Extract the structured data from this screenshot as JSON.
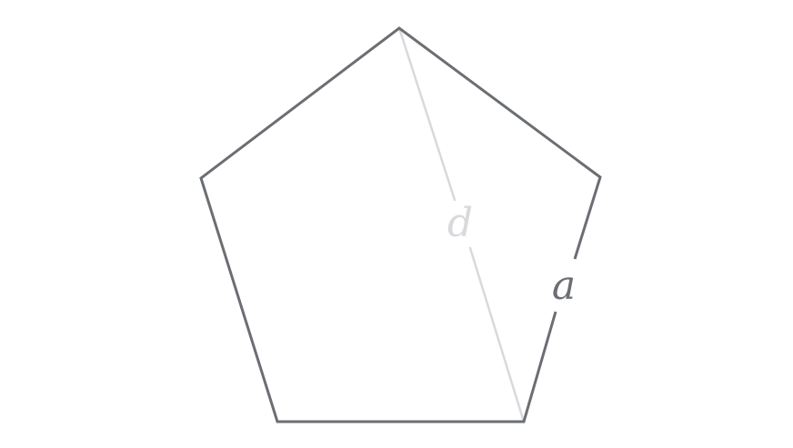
{
  "diagram": {
    "shape": "regular-pentagon",
    "labels": {
      "side": "a",
      "diagonal": "d"
    },
    "colors": {
      "outline": "#6b6e73",
      "diagonal": "#d9d9dd",
      "side_label": "#6b6e73",
      "diagonal_label": "#d9d9dd",
      "background": "#ffffff"
    }
  }
}
